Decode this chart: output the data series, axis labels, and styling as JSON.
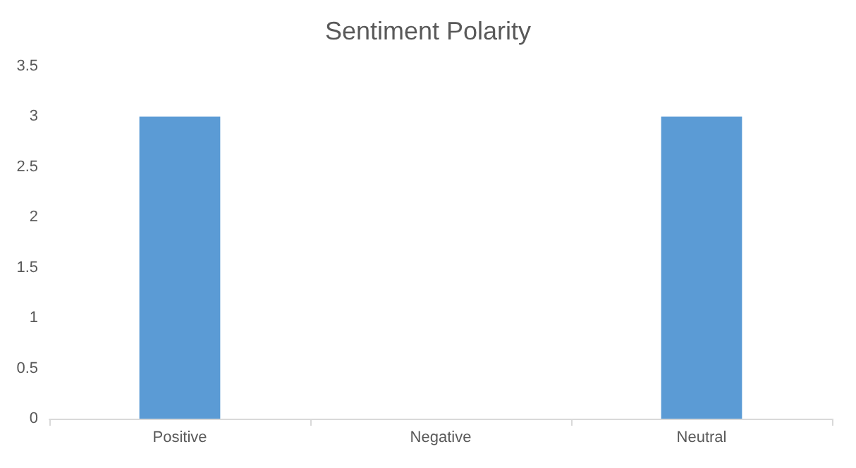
{
  "chart_data": {
    "type": "bar",
    "title": "Sentiment Polarity",
    "categories": [
      "Positive",
      "Negative",
      "Neutral"
    ],
    "values": [
      3,
      0,
      3
    ],
    "color": "#5b9bd5",
    "ylim": [
      0,
      3.5
    ],
    "yticks": [
      0,
      0.5,
      1,
      1.5,
      2,
      2.5,
      3,
      3.5
    ],
    "grid": false
  }
}
